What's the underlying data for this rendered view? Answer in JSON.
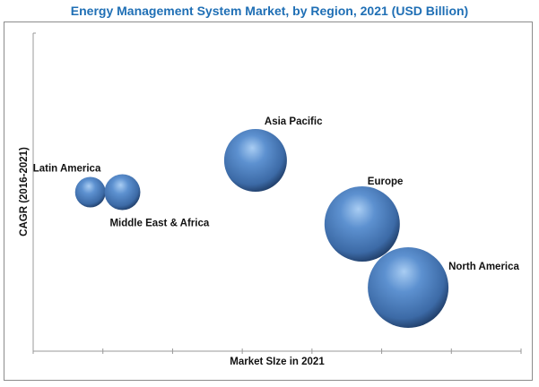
{
  "chart_data": {
    "type": "bubble",
    "title": "Energy Management System Market, by Region, 2021 (USD Billion)",
    "xlabel": "Market SIze in 2021",
    "ylabel": "CAGR (2016-2021)",
    "xlim": [
      0,
      7
    ],
    "ylim": [
      0,
      10
    ],
    "x_ticks_count": 8,
    "tick_labels_shown": false,
    "grid": false,
    "legend": "none",
    "bubble_color": "#4a7fc1",
    "series": [
      {
        "label": "Latin America",
        "x": 0.82,
        "y": 5.0,
        "size": 289
      },
      {
        "label": "Middle East & Africa",
        "x": 1.28,
        "y": 5.0,
        "size": 400
      },
      {
        "label": "Asia Pacific",
        "x": 3.19,
        "y": 6.0,
        "size": 1225
      },
      {
        "label": "Europe",
        "x": 4.72,
        "y": 4.0,
        "size": 1764
      },
      {
        "label": "North America",
        "x": 5.38,
        "y": 2.0,
        "size": 2025
      }
    ]
  }
}
